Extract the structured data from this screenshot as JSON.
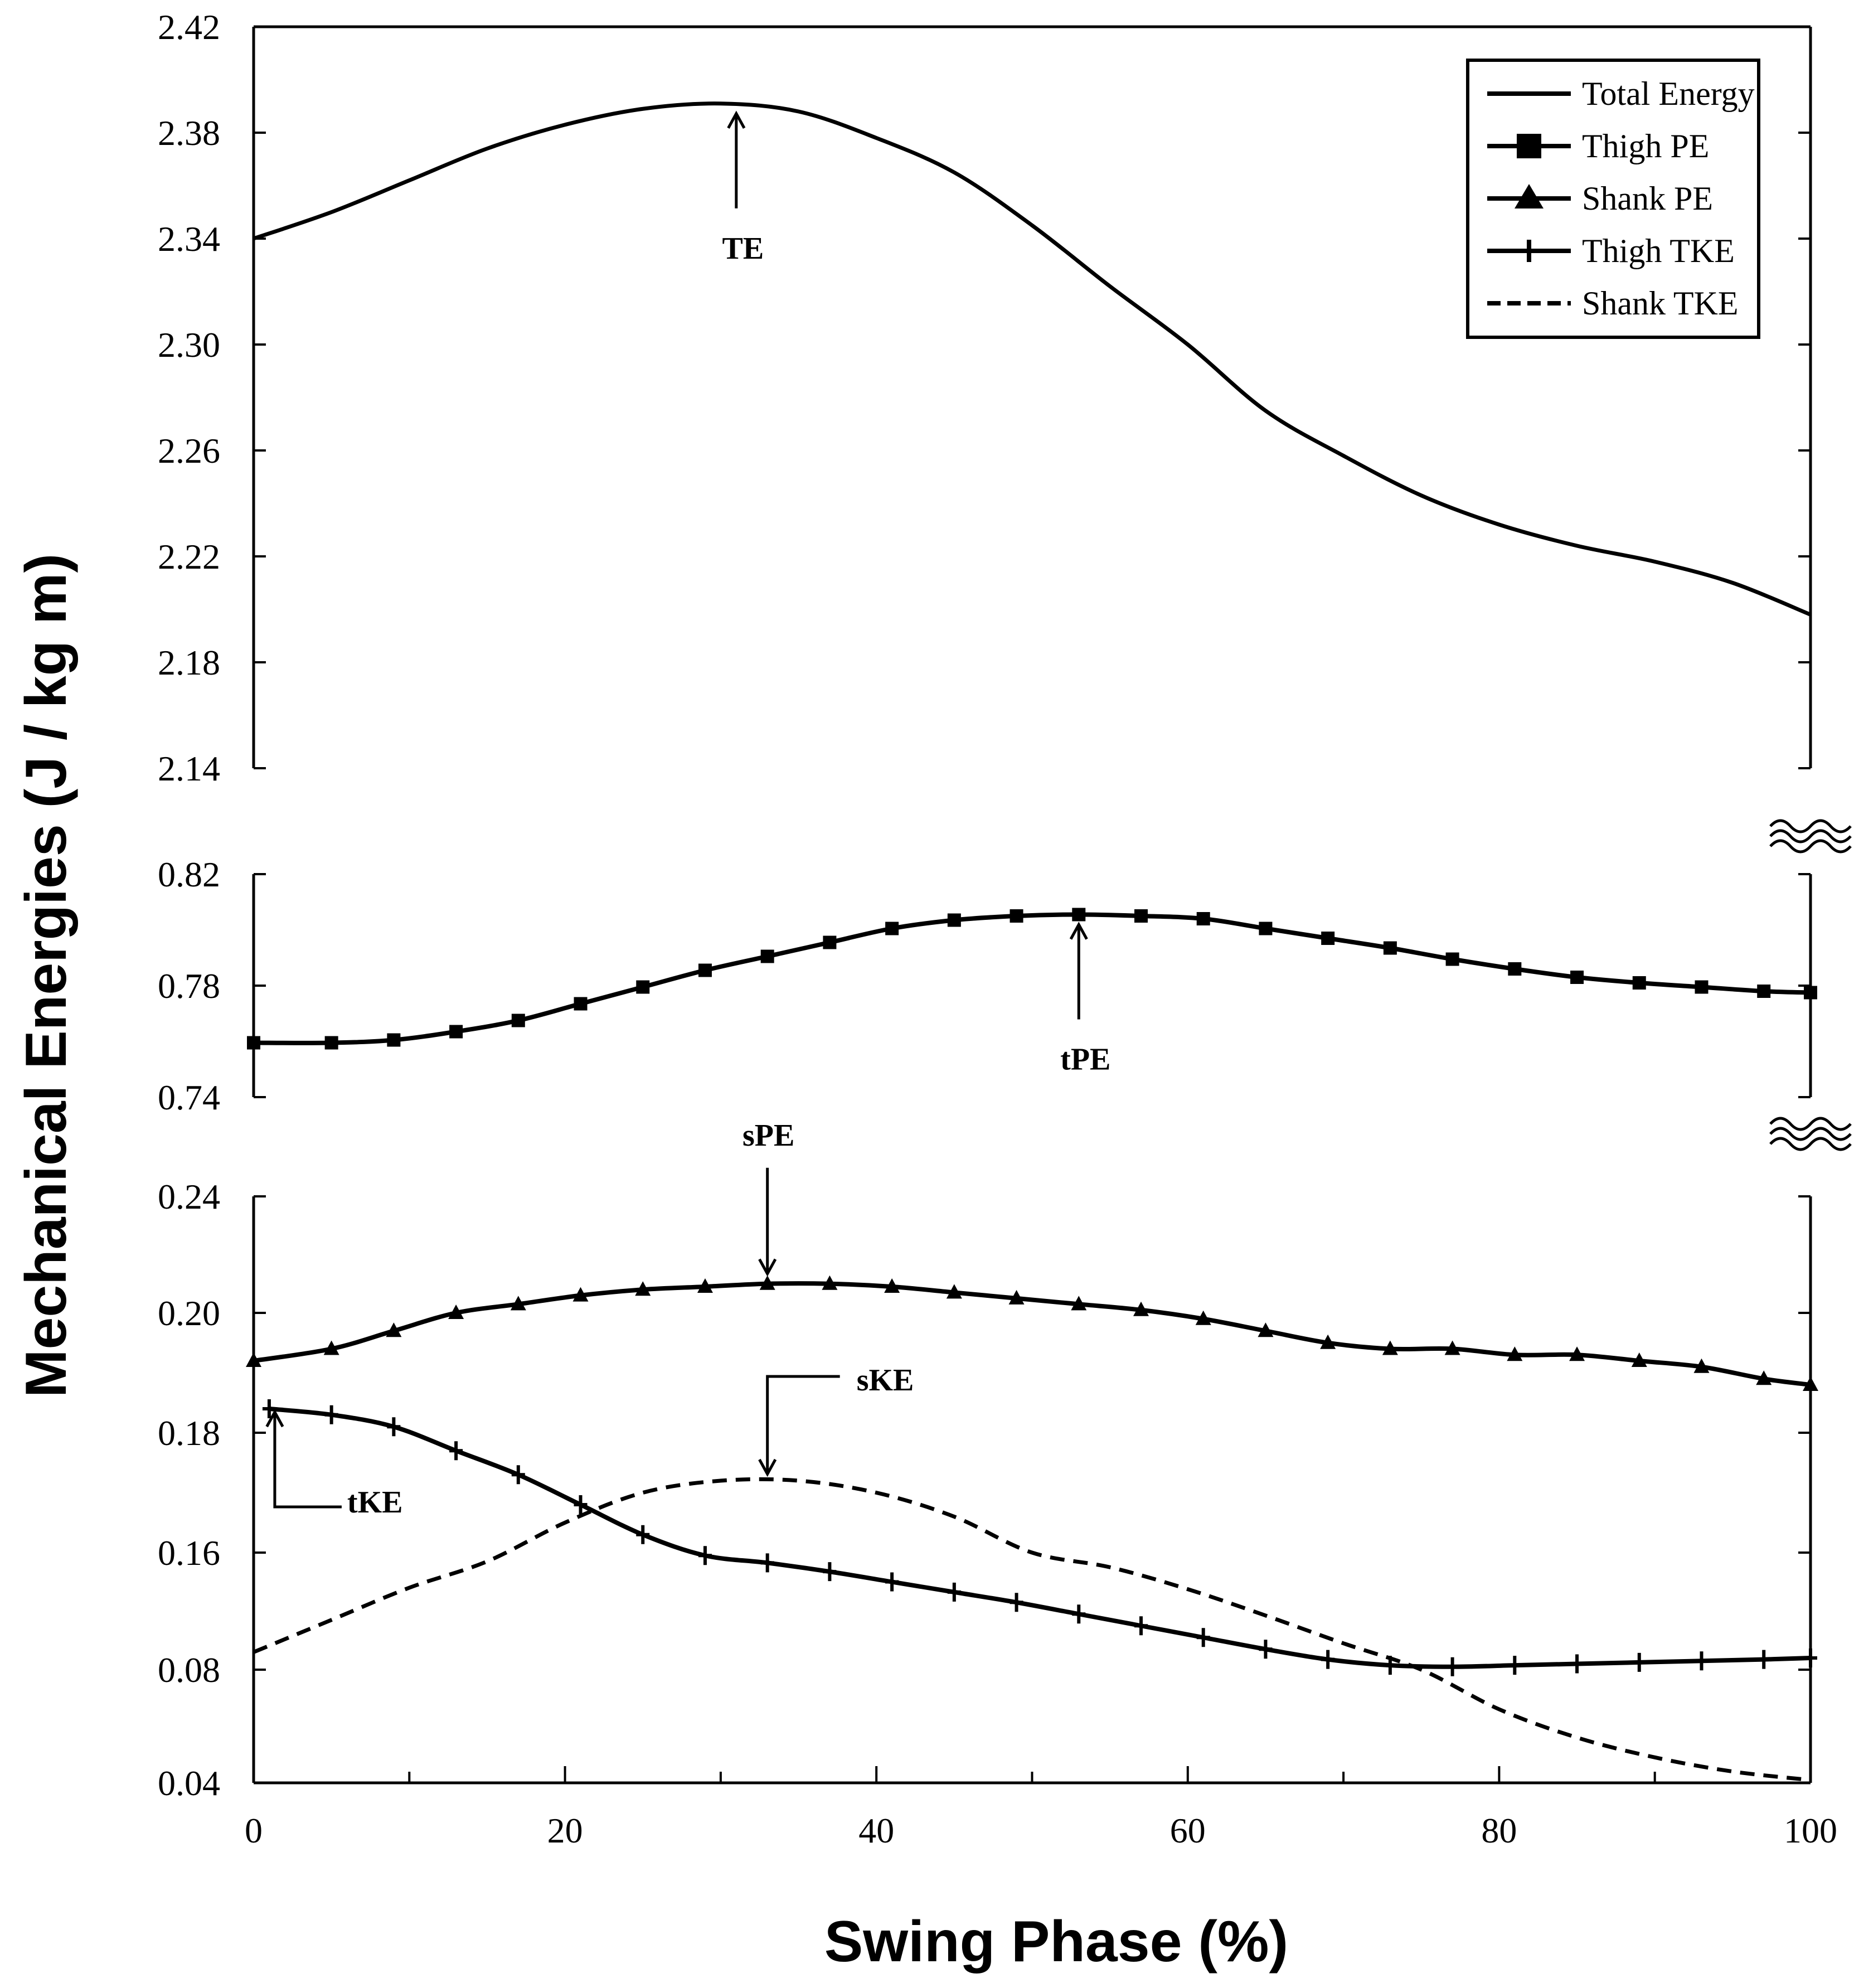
{
  "chart_data": {
    "type": "line",
    "xlabel": "Swing Phase (%)",
    "ylabel": "Mechanical Energies (J / kg m)",
    "x_ticks": [
      "0",
      "20",
      "40",
      "60",
      "80",
      "100"
    ],
    "xlim": [
      0,
      100
    ],
    "panels": [
      {
        "id": "top",
        "ylim": [
          2.14,
          2.42
        ],
        "y_ticks": [
          "2.42",
          "2.38",
          "2.34",
          "2.30",
          "2.26",
          "2.22",
          "2.18",
          "2.14"
        ],
        "tick_values": [
          2.42,
          2.38,
          2.34,
          2.3,
          2.26,
          2.22,
          2.18,
          2.14
        ]
      },
      {
        "id": "middle",
        "ylim": [
          0.74,
          0.82
        ],
        "y_ticks": [
          "0.82",
          "0.78",
          "0.74"
        ],
        "tick_values": [
          0.82,
          0.78,
          0.74
        ]
      },
      {
        "id": "bottom",
        "ylim": [
          0.04,
          0.24
        ],
        "y_ticks": [
          "0.24",
          "0.20",
          "0.18",
          "0.16",
          "0.08",
          "0.04"
        ],
        "tick_values": [
          0.24,
          0.2,
          0.18,
          0.16,
          0.08,
          0.04
        ]
      }
    ],
    "series": [
      {
        "name": "Total Energy",
        "panel": "top",
        "marker": "none",
        "dash": "solid",
        "x": [
          0,
          5,
          10,
          15,
          20,
          25,
          30,
          35,
          40,
          45,
          50,
          55,
          60,
          65,
          70,
          75,
          80,
          85,
          90,
          95,
          100
        ],
        "y": [
          2.34,
          2.35,
          2.362,
          2.374,
          2.383,
          2.389,
          2.391,
          2.388,
          2.378,
          2.365,
          2.345,
          2.322,
          2.3,
          2.275,
          2.258,
          2.243,
          2.232,
          2.224,
          2.218,
          2.21,
          2.198
        ]
      },
      {
        "name": "Thigh PE",
        "panel": "middle",
        "marker": "square",
        "dash": "solid",
        "x": [
          0,
          5,
          9,
          13,
          17,
          21,
          25,
          29,
          33,
          37,
          41,
          45,
          49,
          53,
          57,
          61,
          65,
          69,
          73,
          77,
          81,
          85,
          89,
          93,
          97,
          100
        ],
        "y": [
          0.7595,
          0.7595,
          0.7605,
          0.7635,
          0.7675,
          0.7735,
          0.7795,
          0.7855,
          0.7905,
          0.7955,
          0.8005,
          0.8035,
          0.805,
          0.8055,
          0.805,
          0.804,
          0.8005,
          0.797,
          0.7935,
          0.7895,
          0.786,
          0.783,
          0.781,
          0.7795,
          0.778,
          0.7775
        ]
      },
      {
        "name": "Shank PE",
        "panel": "bottom",
        "marker": "triangle",
        "dash": "solid",
        "x": [
          0,
          5,
          9,
          13,
          17,
          21,
          25,
          29,
          33,
          37,
          41,
          45,
          49,
          53,
          57,
          61,
          65,
          69,
          73,
          77,
          81,
          85,
          89,
          93,
          97,
          100
        ],
        "y": [
          0.192,
          0.194,
          0.197,
          0.2,
          0.203,
          0.206,
          0.208,
          0.209,
          0.21,
          0.21,
          0.209,
          0.207,
          0.205,
          0.203,
          0.201,
          0.199,
          0.197,
          0.195,
          0.194,
          0.194,
          0.193,
          0.193,
          0.192,
          0.191,
          0.189,
          0.188
        ]
      },
      {
        "name": "Thigh TKE",
        "panel": "bottom",
        "marker": "plus",
        "dash": "solid",
        "x": [
          1,
          5,
          9,
          13,
          17,
          21,
          25,
          29,
          33,
          37,
          41,
          45,
          49,
          53,
          57,
          61,
          65,
          69,
          73,
          77,
          81,
          85,
          89,
          93,
          97,
          100
        ],
        "y": [
          0.184,
          0.183,
          0.181,
          0.177,
          0.173,
          0.168,
          0.163,
          0.158,
          0.153,
          0.147,
          0.14,
          0.133,
          0.126,
          0.118,
          0.11,
          0.102,
          0.094,
          0.087,
          0.083,
          0.082,
          0.083,
          0.084,
          0.085,
          0.086,
          0.087,
          0.088
        ]
      },
      {
        "name": "Shank TKE",
        "panel": "bottom",
        "marker": "none",
        "dash": "dashed",
        "x": [
          0,
          5,
          10,
          15,
          20,
          25,
          30,
          35,
          40,
          45,
          50,
          55,
          60,
          65,
          70,
          75,
          80,
          85,
          90,
          95,
          100
        ],
        "y": [
          0.092,
          0.114,
          0.136,
          0.154,
          0.165,
          0.17,
          0.172,
          0.172,
          0.17,
          0.166,
          0.16,
          0.15,
          0.135,
          0.117,
          0.098,
          0.08,
          0.066,
          0.056,
          0.049,
          0.044,
          0.041
        ]
      }
    ],
    "annotations": [
      {
        "label": "TE",
        "panel": "top",
        "x": 31,
        "y": 2.391,
        "direction": "up"
      },
      {
        "label": "tPE",
        "panel": "middle",
        "x": 53,
        "y": 0.8055,
        "direction": "up"
      },
      {
        "label": "sPE",
        "panel": "bottom",
        "x": 33,
        "y": 0.21,
        "direction": "down"
      },
      {
        "label": "sKE",
        "panel": "bottom",
        "x": 33,
        "y": 0.172,
        "direction": "down-elbow"
      },
      {
        "label": "tKE",
        "panel": "bottom",
        "x": 1,
        "y": 0.184,
        "direction": "up-elbow"
      }
    ],
    "legend": {
      "position": "top-right",
      "entries": [
        "Total Energy",
        "Thigh PE",
        "Shank PE",
        "Thigh TKE",
        "Shank TKE"
      ]
    },
    "axis_breaks": 2
  }
}
